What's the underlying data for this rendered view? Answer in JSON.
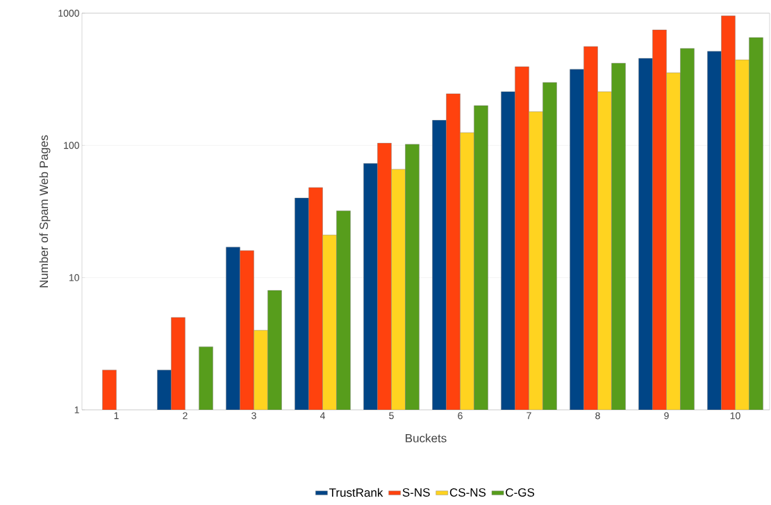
{
  "chart_data": {
    "type": "bar",
    "xlabel": "Buckets",
    "ylabel": "Number of Spam Web Pages",
    "categories": [
      "1",
      "2",
      "3",
      "4",
      "5",
      "6",
      "7",
      "8",
      "9",
      "10"
    ],
    "series": [
      {
        "name": "TrustRank",
        "color": "#004586",
        "values": [
          null,
          2,
          17,
          40,
          73,
          155,
          255,
          376,
          456,
          515
        ]
      },
      {
        "name": "S-NS",
        "color": "#ff420e",
        "values": [
          2,
          5,
          16,
          48,
          104,
          246,
          394,
          560,
          748,
          955
        ]
      },
      {
        "name": "CS-NS",
        "color": "#ffd320",
        "values": [
          null,
          null,
          4,
          21,
          66,
          125,
          180,
          255,
          354,
          444
        ]
      },
      {
        "name": "C-GS",
        "color": "#579d1c",
        "values": [
          null,
          3,
          8,
          32,
          102,
          200,
          299,
          419,
          541,
          655
        ]
      }
    ],
    "log": "y",
    "ylim": [
      1,
      1000
    ],
    "yticks": [
      1,
      10,
      100,
      1000
    ],
    "grid": "y",
    "legend": "bottom"
  }
}
